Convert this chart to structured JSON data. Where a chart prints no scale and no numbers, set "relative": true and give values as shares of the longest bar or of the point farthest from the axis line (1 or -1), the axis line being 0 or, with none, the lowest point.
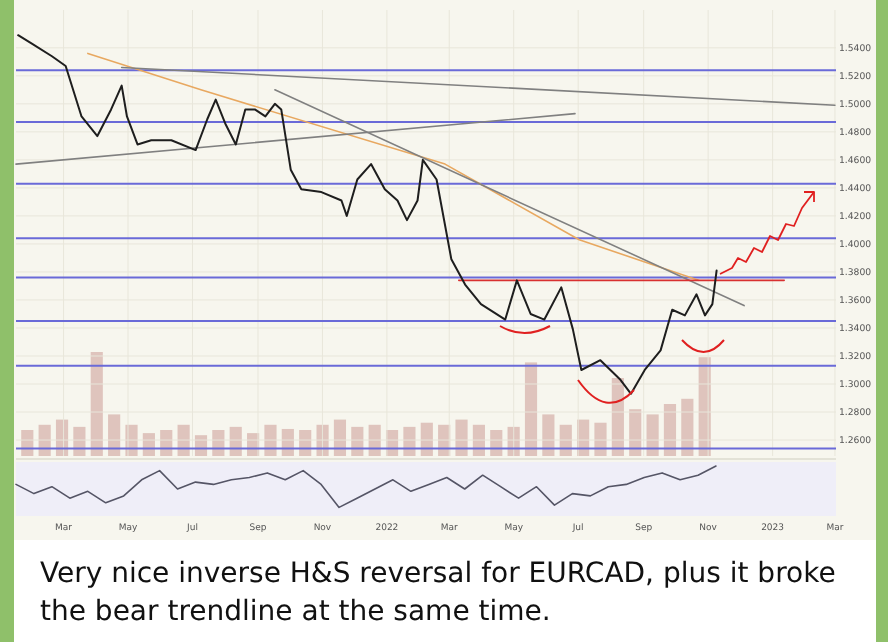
{
  "chart_data": [
    {
      "type": "line",
      "annotations": [
        "Very nice inverse H&S reversal for EURCAD, plus it broke the bear trendline at the same time."
      ],
      "xlim": [
        "2021-01-15",
        "2023-03-02"
      ],
      "xticks": [
        {
          "value": "2021-03-01",
          "label": "Mar"
        },
        {
          "value": "2021-05-01",
          "label": "May"
        },
        {
          "value": "2021-07-01",
          "label": "Jul"
        },
        {
          "value": "2021-09-01",
          "label": "Sep"
        },
        {
          "value": "2021-11-01",
          "label": "Nov"
        },
        {
          "value": "2022-01-01",
          "label": "2022"
        },
        {
          "value": "2022-03-01",
          "label": "Mar"
        },
        {
          "value": "2022-05-01",
          "label": "May"
        },
        {
          "value": "2022-07-01",
          "label": "Jul"
        },
        {
          "value": "2022-09-01",
          "label": "Sep"
        },
        {
          "value": "2022-11-01",
          "label": "Nov"
        },
        {
          "value": "2023-01-01",
          "label": "2023"
        },
        {
          "value": "2023-03-01",
          "label": "Mar"
        }
      ],
      "ylim": [
        1.2486,
        1.567
      ],
      "yticks": [
        {
          "value": 1.26,
          "label": "1.2600"
        },
        {
          "value": 1.28,
          "label": "1.2800"
        },
        {
          "value": 1.3,
          "label": "1.3000"
        },
        {
          "value": 1.32,
          "label": "1.3200"
        },
        {
          "value": 1.34,
          "label": "1.3400"
        },
        {
          "value": 1.36,
          "label": "1.3600"
        },
        {
          "value": 1.38,
          "label": "1.3800"
        },
        {
          "value": 1.4,
          "label": "1.4000"
        },
        {
          "value": 1.42,
          "label": "1.4200"
        },
        {
          "value": 1.44,
          "label": "1.4400"
        },
        {
          "value": 1.46,
          "label": "1.4600"
        },
        {
          "value": 1.48,
          "label": "1.4800"
        },
        {
          "value": 1.5,
          "label": "1.5000"
        },
        {
          "value": 1.52,
          "label": "1.5200"
        },
        {
          "value": 1.54,
          "label": "1.5400"
        }
      ],
      "grid": true,
      "ref_lines": [
        {
          "axis": "y",
          "value": 1.524,
          "color": "#6a6ad8"
        },
        {
          "axis": "y",
          "value": 1.487,
          "color": "#6a6ad8"
        },
        {
          "axis": "y",
          "value": 1.443,
          "color": "#6a6ad8"
        },
        {
          "axis": "y",
          "value": 1.404,
          "color": "#6a6ad8"
        },
        {
          "axis": "y",
          "value": 1.376,
          "color": "#6a6ad8"
        },
        {
          "axis": "y",
          "value": 1.345,
          "color": "#6a6ad8"
        },
        {
          "axis": "y",
          "value": 1.313,
          "color": "#6a6ad8"
        },
        {
          "axis": "y",
          "value": 1.254,
          "color": "#6a6ad8"
        }
      ],
      "series": [
        {
          "color": "#e8a860",
          "x": [
            "2021-03-24",
            "2021-07-09",
            "2022-02-25",
            "2022-07-02",
            "2022-10-23"
          ],
          "values": [
            1.536,
            1.51,
            1.457,
            1.403,
            1.374
          ]
        },
        {
          "color": "#808080",
          "x": [
            "2021-04-25",
            "2023-03-01"
          ],
          "values": [
            1.526,
            1.499
          ]
        },
        {
          "color": "#808080",
          "x": [
            "2021-01-15",
            "2022-06-28"
          ],
          "values": [
            1.457,
            1.493
          ]
        },
        {
          "color": "#808080",
          "x": [
            "2021-09-17",
            "2022-12-05"
          ],
          "values": [
            1.51,
            1.356
          ]
        },
        {
          "color": "#d83030",
          "x": [
            "2022-03-10",
            "2023-01-12"
          ],
          "values": [
            1.374,
            1.374
          ]
        },
        {
          "color": "#1e1e1e",
          "x": [
            "2021-01-17",
            "2021-01-30",
            "2021-02-18",
            "2021-03-03",
            "2021-03-18",
            "2021-04-02",
            "2021-04-15",
            "2021-04-25",
            "2021-04-30",
            "2021-05-10",
            "2021-05-23",
            "2021-06-11",
            "2021-07-04",
            "2021-07-15",
            "2021-07-23",
            "2021-08-01",
            "2021-08-11",
            "2021-08-20",
            "2021-08-29",
            "2021-09-08",
            "2021-09-17",
            "2021-09-23",
            "2021-10-02",
            "2021-10-12",
            "2021-10-31",
            "2021-11-19",
            "2021-11-24",
            "2021-12-04",
            "2021-12-17",
            "2021-12-30",
            "2022-01-11",
            "2022-01-20",
            "2022-01-30",
            "2022-02-04",
            "2022-02-17",
            "2022-03-03",
            "2022-03-16",
            "2022-03-31",
            "2022-04-23",
            "2022-05-04",
            "2022-05-17",
            "2022-05-30",
            "2022-06-15",
            "2022-06-26",
            "2022-07-04",
            "2022-07-22",
            "2022-08-10",
            "2022-08-20",
            "2022-09-02",
            "2022-09-17",
            "2022-09-28",
            "2022-10-10",
            "2022-10-21",
            "2022-10-29",
            "2022-11-05",
            "2022-11-09"
          ],
          "values": [
            1.549,
            1.543,
            1.534,
            1.527,
            1.491,
            1.477,
            1.496,
            1.513,
            1.491,
            1.471,
            1.474,
            1.474,
            1.467,
            1.489,
            1.503,
            1.486,
            1.471,
            1.496,
            1.496,
            1.491,
            1.5,
            1.496,
            1.453,
            1.439,
            1.437,
            1.431,
            1.42,
            1.446,
            1.457,
            1.439,
            1.431,
            1.417,
            1.431,
            1.46,
            1.446,
            1.389,
            1.371,
            1.357,
            1.346,
            1.374,
            1.35,
            1.346,
            1.369,
            1.339,
            1.31,
            1.317,
            1.303,
            1.293,
            1.31,
            1.324,
            1.353,
            1.349,
            1.364,
            1.349,
            1.357,
            1.381
          ]
        }
      ]
    },
    {
      "type": "bar",
      "relative": true,
      "color": "#d8b8b0",
      "categories": [
        null,
        null,
        null,
        null,
        null,
        null,
        null,
        null,
        null,
        null,
        null,
        null,
        null,
        null,
        null,
        null,
        null,
        null,
        null,
        null,
        null,
        null,
        null,
        null,
        null,
        null,
        null,
        null,
        null,
        null,
        null,
        null,
        null,
        null,
        null,
        null,
        null,
        null,
        null,
        null
      ],
      "values": [
        0.25,
        0.3,
        0.35,
        0.28,
        1,
        0.4,
        0.3,
        0.22,
        0.25,
        0.3,
        0.2,
        0.25,
        0.28,
        0.22,
        0.3,
        0.26,
        0.25,
        0.3,
        0.35,
        0.28,
        0.3,
        0.25,
        0.28,
        0.32,
        0.3,
        0.35,
        0.3,
        0.25,
        0.28,
        0.9,
        0.4,
        0.3,
        0.35,
        0.32,
        0.75,
        0.45,
        0.4,
        0.5,
        0.55,
        0.95
      ]
    },
    {
      "type": "line",
      "relative": true,
      "color": "#555566",
      "categories": [
        null,
        null,
        null,
        null,
        null,
        null,
        null,
        null,
        null,
        null,
        null,
        null,
        null,
        null,
        null,
        null,
        null,
        null,
        null,
        null,
        null,
        null,
        null,
        null,
        null,
        null,
        null,
        null,
        null,
        null,
        null,
        null,
        null,
        null,
        null,
        null,
        null,
        null,
        null,
        null
      ],
      "values": [
        0.6,
        0.4,
        0.55,
        0.3,
        0.45,
        0.2,
        0.35,
        0.7,
        0.9,
        0.5,
        0.65,
        0.6,
        0.7,
        0.75,
        0.85,
        0.7,
        0.9,
        0.6,
        0.1,
        0.3,
        0.5,
        0.7,
        0.45,
        0.6,
        0.75,
        0.5,
        0.8,
        0.55,
        0.3,
        0.55,
        0.15,
        0.4,
        0.35,
        0.55,
        0.6,
        0.75,
        0.85,
        0.7,
        0.8,
        1
      ]
    }
  ]
}
